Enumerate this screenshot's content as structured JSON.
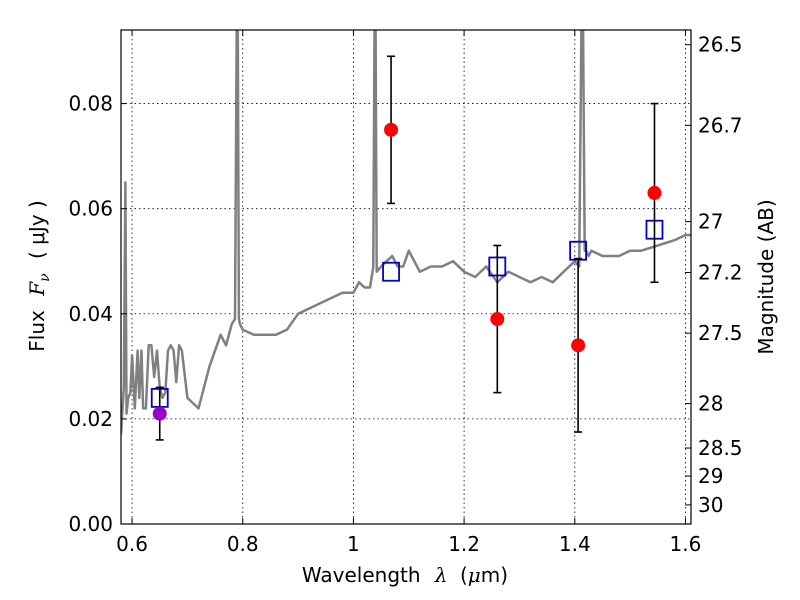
{
  "chart_data": {
    "type": "scatter",
    "title": "",
    "xlabel_parts": {
      "text": "Wavelength",
      "symbol": "λ",
      "unit_open": "(",
      "unit_mu": "μ",
      "unit_rest": "m)"
    },
    "ylabel_parts": {
      "text": "Flux",
      "symbol_main": "F",
      "symbol_sub": "ν",
      "unit": "( μJy )"
    },
    "ylabel_right": "Magnitude (AB)",
    "xlim": [
      0.58,
      1.61
    ],
    "ylim": [
      0.0,
      0.094
    ],
    "x_ticks": [
      0.6,
      0.8,
      1.0,
      1.2,
      1.4,
      1.6
    ],
    "x_tick_labels": [
      "0.6",
      "0.8",
      "1",
      "1.2",
      "1.4",
      "1.6"
    ],
    "y_ticks": [
      0.0,
      0.02,
      0.04,
      0.06,
      0.08
    ],
    "y_tick_labels": [
      "0.00",
      "0.02",
      "0.04",
      "0.06",
      "0.08"
    ],
    "y_right_ticks": [
      26.5,
      26.7,
      27,
      27.2,
      27.5,
      28,
      28.5,
      29,
      30
    ],
    "y_right_tick_labels": [
      "26.5",
      "26.7",
      "27",
      "27.2",
      "27.5",
      "28",
      "28.5",
      "29",
      "30"
    ],
    "grid": true,
    "colors": {
      "model": "#808080",
      "observed": "#ff0000",
      "synthetic": "#0000cc",
      "first_point": "#9900cc",
      "error": "#000000"
    },
    "model_spectrum": {
      "x": [
        0.58,
        0.585,
        0.588,
        0.59,
        0.593,
        0.597,
        0.6,
        0.605,
        0.61,
        0.613,
        0.617,
        0.62,
        0.625,
        0.63,
        0.635,
        0.64,
        0.645,
        0.65,
        0.655,
        0.66,
        0.665,
        0.67,
        0.675,
        0.68,
        0.685,
        0.69,
        0.7,
        0.72,
        0.74,
        0.76,
        0.77,
        0.78,
        0.786,
        0.789,
        0.791,
        0.793,
        0.795,
        0.8,
        0.82,
        0.84,
        0.86,
        0.88,
        0.9,
        0.92,
        0.94,
        0.96,
        0.98,
        1.0,
        1.01,
        1.02,
        1.03,
        1.036,
        1.038,
        1.04,
        1.042,
        1.05,
        1.06,
        1.07,
        1.08,
        1.09,
        1.1,
        1.12,
        1.14,
        1.16,
        1.18,
        1.2,
        1.22,
        1.24,
        1.26,
        1.28,
        1.3,
        1.32,
        1.34,
        1.36,
        1.38,
        1.4,
        1.408,
        1.412,
        1.415,
        1.418,
        1.42,
        1.425,
        1.43,
        1.45,
        1.48,
        1.5,
        1.52,
        1.55,
        1.58,
        1.6,
        1.61
      ],
      "y": [
        0.017,
        0.026,
        0.065,
        0.021,
        0.024,
        0.025,
        0.032,
        0.022,
        0.033,
        0.024,
        0.033,
        0.022,
        0.022,
        0.034,
        0.034,
        0.028,
        0.033,
        0.026,
        0.024,
        0.025,
        0.033,
        0.034,
        0.033,
        0.027,
        0.034,
        0.033,
        0.024,
        0.022,
        0.03,
        0.036,
        0.034,
        0.038,
        0.039,
        0.094,
        0.094,
        0.039,
        0.038,
        0.037,
        0.036,
        0.036,
        0.036,
        0.037,
        0.04,
        0.041,
        0.042,
        0.043,
        0.044,
        0.044,
        0.046,
        0.045,
        0.045,
        0.049,
        0.094,
        0.094,
        0.048,
        0.049,
        0.05,
        0.051,
        0.049,
        0.049,
        0.052,
        0.048,
        0.049,
        0.049,
        0.05,
        0.048,
        0.047,
        0.049,
        0.046,
        0.048,
        0.047,
        0.046,
        0.047,
        0.046,
        0.048,
        0.05,
        0.049,
        0.094,
        0.094,
        0.052,
        0.052,
        0.051,
        0.052,
        0.051,
        0.051,
        0.052,
        0.052,
        0.053,
        0.054,
        0.055,
        0.055
      ]
    },
    "observed": [
      {
        "x": 0.65,
        "y": 0.021,
        "err": 0.005
      },
      {
        "x": 1.068,
        "y": 0.075,
        "err": 0.014
      },
      {
        "x": 1.26,
        "y": 0.039,
        "err": 0.014
      },
      {
        "x": 1.406,
        "y": 0.034,
        "err": 0.0165
      },
      {
        "x": 1.544,
        "y": 0.063,
        "err": 0.017
      }
    ],
    "synthetic": [
      {
        "x": 0.65,
        "y": 0.024
      },
      {
        "x": 1.068,
        "y": 0.048
      },
      {
        "x": 1.26,
        "y": 0.049
      },
      {
        "x": 1.406,
        "y": 0.052
      },
      {
        "x": 1.544,
        "y": 0.056
      }
    ]
  }
}
